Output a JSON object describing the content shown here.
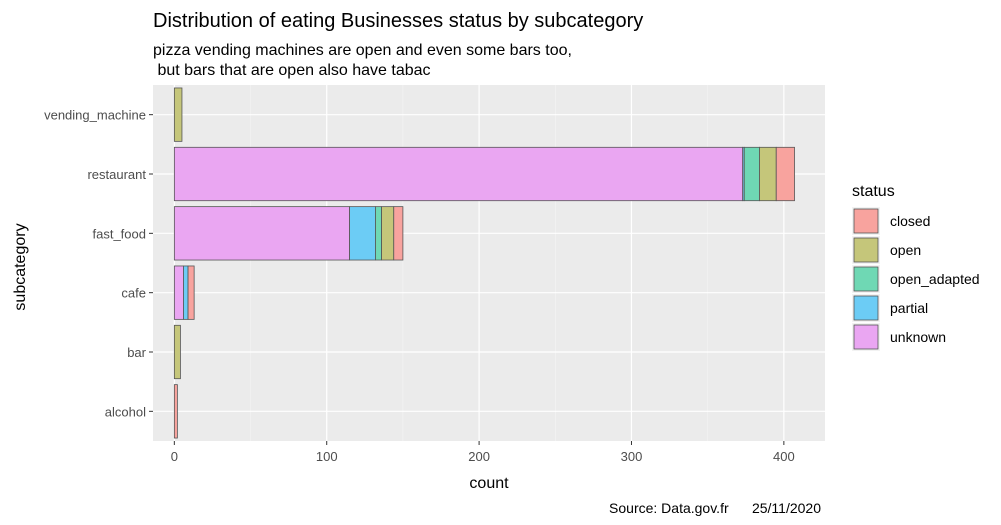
{
  "chart_data": {
    "type": "bar",
    "orientation": "horizontal",
    "stacked": true,
    "title": "Distribution of eating Businesses status by subcategory",
    "subtitle": [
      "pizza vending machines are open and even some bars too,",
      " but bars that are open also have tabac"
    ],
    "caption": "Source: Data.gov.fr      25/11/2020",
    "xlabel": "count",
    "ylabel": "subcategory",
    "xlim": [
      -14,
      427
    ],
    "xticks": [
      0,
      100,
      200,
      300,
      400
    ],
    "grid": true,
    "categories": [
      "vending_machine",
      "restaurant",
      "fast_food",
      "cafe",
      "bar",
      "alcohol"
    ],
    "stack_order": [
      "unknown",
      "partial",
      "open_adapted",
      "open",
      "closed"
    ],
    "legend": {
      "title": "status",
      "position": "right",
      "entries": [
        "closed",
        "open",
        "open_adapted",
        "partial",
        "unknown"
      ]
    },
    "colors": {
      "closed": "#F8A39E",
      "open": "#C5C67A",
      "open_adapted": "#6FD8B4",
      "partial": "#6CCCF5",
      "unknown": "#EAA6F2"
    },
    "series": [
      {
        "name": "unknown",
        "values": [
          0,
          373,
          115,
          6,
          0,
          0
        ]
      },
      {
        "name": "partial",
        "values": [
          0,
          1,
          17,
          3,
          0,
          0
        ]
      },
      {
        "name": "open_adapted",
        "values": [
          0,
          10,
          4,
          0,
          0,
          0
        ]
      },
      {
        "name": "open",
        "values": [
          5,
          11,
          8,
          0,
          4,
          0
        ]
      },
      {
        "name": "closed",
        "values": [
          0,
          12,
          6,
          4,
          0,
          2
        ]
      }
    ]
  }
}
